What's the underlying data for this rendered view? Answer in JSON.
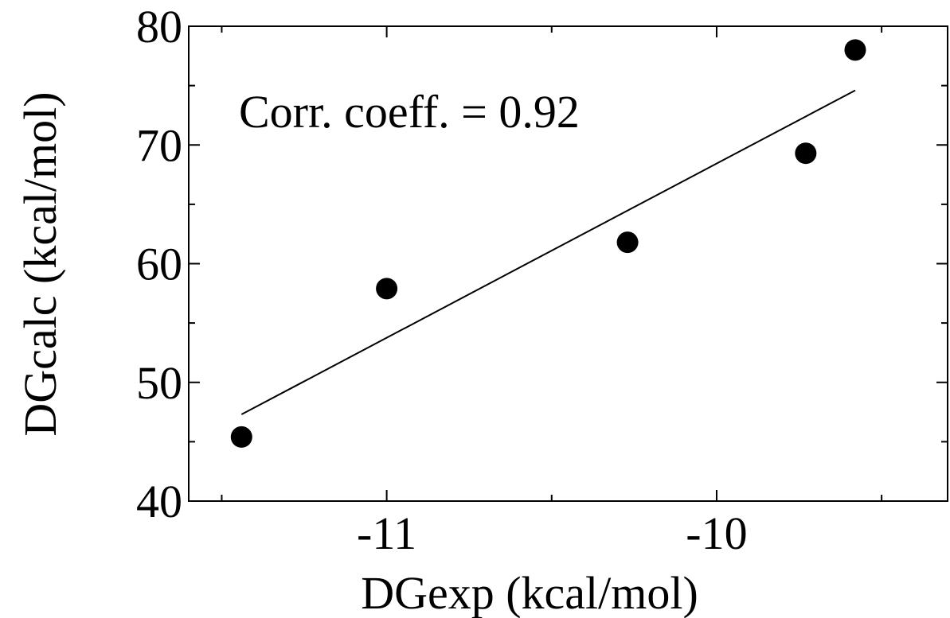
{
  "chart_data": {
    "type": "scatter",
    "title": "",
    "xlabel": "DGexp (kcal/mol)",
    "ylabel": "DGcalc (kcal/mol)",
    "xlim": [
      -11.6,
      -9.3
    ],
    "ylim": [
      40,
      80
    ],
    "x_ticks": [
      -11,
      -10
    ],
    "x_tick_labels": [
      "-11",
      "-10"
    ],
    "x_minor_ticks": [
      -11.5,
      -10.5,
      -9.5
    ],
    "y_ticks": [
      40,
      50,
      60,
      70,
      80
    ],
    "y_tick_labels": [
      "40",
      "50",
      "60",
      "70",
      "80"
    ],
    "y_minor_ticks": [
      45,
      55,
      65,
      75
    ],
    "grid": false,
    "points": [
      {
        "x": -11.44,
        "y": 45.4
      },
      {
        "x": -11.0,
        "y": 57.9
      },
      {
        "x": -10.27,
        "y": 61.8
      },
      {
        "x": -9.73,
        "y": 69.3
      },
      {
        "x": -9.58,
        "y": 78.0
      }
    ],
    "fit_line": [
      {
        "x": -11.44,
        "y": 47.3
      },
      {
        "x": -9.58,
        "y": 74.6
      }
    ],
    "annotation": "Corr. coeff. = 0.92"
  }
}
